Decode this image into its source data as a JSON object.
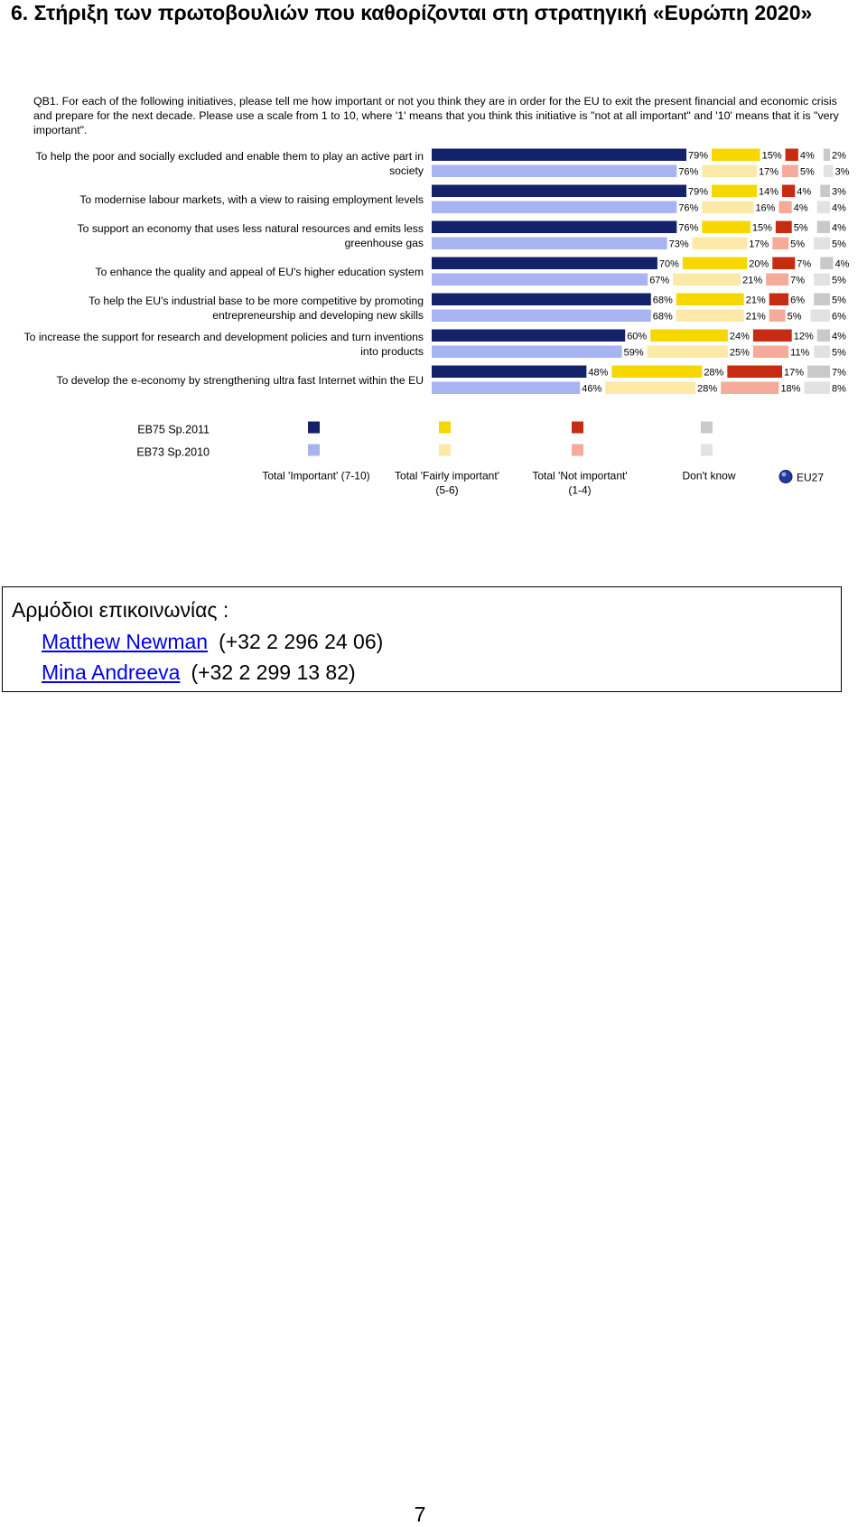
{
  "heading": "6. Στήριξη των πρωτοβουλιών που καθορίζονται στη στρατηγική «Ευρώπη 2020»",
  "question": "QB1. For each of the following initiatives, please tell me how important or not you think they are in order for the EU to exit the present financial and economic crisis and prepare for the next decade. Please use a scale from 1 to 10, where '1' means that you think this initiative is \"not at all important\" and '10' means that it is \"very important\".",
  "chart_data": {
    "type": "bar",
    "orientation": "horizontal",
    "stacked": true,
    "categories": [
      [
        "To help the poor and socially excluded and enable them to play an active part in",
        "society"
      ],
      [
        "To modernise labour markets, with a view to raising employment levels"
      ],
      [
        "To support an economy that uses less natural resources and emits less",
        "greenhouse gas"
      ],
      [
        "To enhance the quality and appeal of EU's higher education system"
      ],
      [
        "To help the EU's industrial base to be more competitive by promoting",
        "entrepreneurship and developing new skills"
      ],
      [
        "To increase the support for research and development policies and turn inventions",
        "into products"
      ],
      [
        "To develop the e-economy by strengthening ultra fast Internet within the EU"
      ]
    ],
    "answer_groups": [
      "Total 'Important' (7-10)",
      "Total 'Fairly important' (5-6)",
      "Total 'Not important' (1-4)",
      "Don't know"
    ],
    "series": [
      {
        "name": "EB75 Sp.2011",
        "values": [
          [
            79,
            15,
            4,
            2
          ],
          [
            79,
            14,
            4,
            3
          ],
          [
            76,
            15,
            5,
            4
          ],
          [
            70,
            20,
            7,
            4
          ],
          [
            68,
            21,
            6,
            5
          ],
          [
            60,
            24,
            12,
            4
          ],
          [
            48,
            28,
            17,
            7
          ]
        ]
      },
      {
        "name": "EB73 Sp.2010",
        "values": [
          [
            76,
            17,
            5,
            3
          ],
          [
            76,
            16,
            4,
            4
          ],
          [
            73,
            17,
            5,
            5
          ],
          [
            67,
            21,
            7,
            5
          ],
          [
            68,
            21,
            5,
            6
          ],
          [
            59,
            25,
            11,
            5
          ],
          [
            46,
            28,
            18,
            8
          ]
        ]
      }
    ],
    "colors": {
      "EB75 Sp.2011": [
        "#14216b",
        "#f6d800",
        "#c72c12",
        "#c9c9c9"
      ],
      "EB73 Sp.2010": [
        "#a7b4f1",
        "#fce9a8",
        "#f4ab9a",
        "#e2e2e2"
      ]
    },
    "legend": {
      "rows": [
        "EB75 Sp.2011",
        "EB73 Sp.2010"
      ],
      "columns": [
        [
          "Total 'Important' (7-10)"
        ],
        [
          "Total 'Fairly important'",
          "(5-6)"
        ],
        [
          "Total 'Not important'",
          "(1-4)"
        ],
        [
          "Don't know"
        ]
      ],
      "eu27": "EU27",
      "placement": "bottom"
    },
    "xlim": [
      0,
      100
    ]
  },
  "contacts": {
    "title": "Αρμόδιοι επικοινωνίας :",
    "people": [
      {
        "name": "Matthew Newman",
        "phone": "(+32 2 296 24 06)"
      },
      {
        "name": "Mina Andreeva",
        "phone": "(+32 2 299 13 82)"
      }
    ]
  },
  "page_number": "7"
}
